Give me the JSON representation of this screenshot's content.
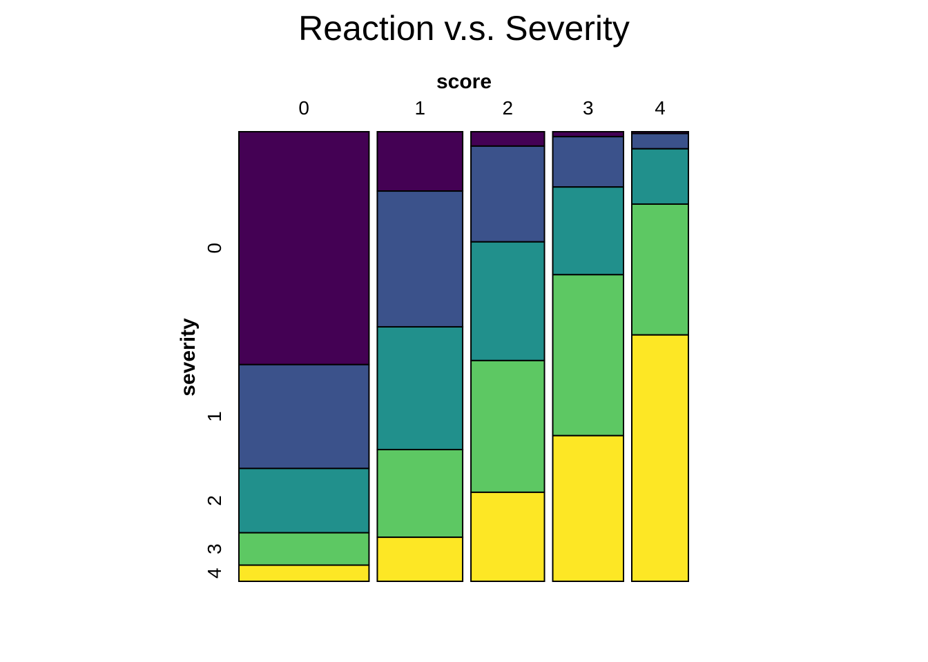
{
  "chart_data": {
    "type": "mosaic",
    "title": "Reaction v.s. Severity",
    "xlabel": "score",
    "ylabel": "severity",
    "x_categories": [
      "0",
      "1",
      "2",
      "3",
      "4"
    ],
    "y_categories": [
      "0",
      "1",
      "2",
      "3",
      "4"
    ],
    "x_widths": [
      0.285,
      0.187,
      0.161,
      0.155,
      0.124
    ],
    "proportions": [
      [
        0.518,
        0.231,
        0.143,
        0.072,
        0.036
      ],
      [
        0.132,
        0.302,
        0.273,
        0.195,
        0.098
      ],
      [
        0.032,
        0.213,
        0.264,
        0.293,
        0.198
      ],
      [
        0.011,
        0.112,
        0.195,
        0.358,
        0.324
      ],
      [
        0.004,
        0.034,
        0.123,
        0.291,
        0.548
      ]
    ],
    "colors": [
      "#440154",
      "#3B528B",
      "#21908C",
      "#5DC863",
      "#FDE725"
    ],
    "legend": "none",
    "grid": false
  }
}
